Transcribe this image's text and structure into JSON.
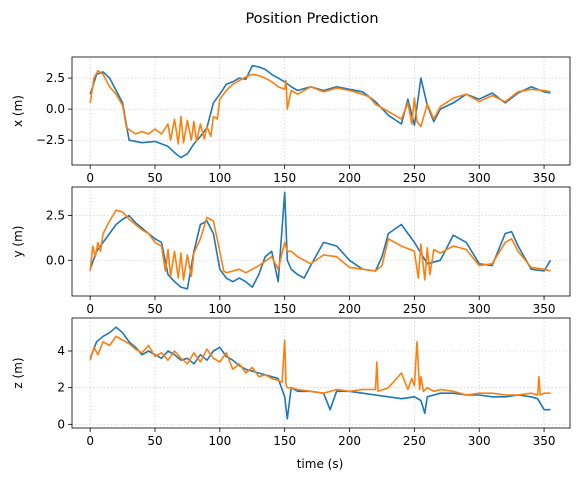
{
  "chart_data": {
    "type": "line",
    "title": "Position Prediction",
    "xlabel": "time (s)",
    "xlim": [
      -14,
      370
    ],
    "xticks": [
      0,
      50,
      100,
      150,
      200,
      250,
      300,
      350
    ],
    "grid": true,
    "series_colors": [
      "#1f77b4",
      "#ff7f0e"
    ],
    "subplots": [
      {
        "ylabel": "x (m)",
        "ylim": [
          -4.5,
          4.2
        ],
        "yticks": [
          -2.5,
          0.0,
          2.5
        ],
        "ytick_labels": [
          "−2.5",
          "0.0",
          "2.5"
        ],
        "series": [
          {
            "x": [
              0,
              5,
              10,
              15,
              20,
              25,
              30,
              40,
              50,
              60,
              65,
              70,
              75,
              80,
              85,
              90,
              95,
              100,
              105,
              110,
              115,
              120,
              125,
              130,
              135,
              140,
              145,
              150,
              155,
              160,
              170,
              180,
              190,
              200,
              210,
              215,
              220,
              230,
              240,
              245,
              250,
              255,
              260,
              265,
              270,
              280,
              290,
              300,
              310,
              320,
              330,
              340,
              350,
              355
            ],
            "values": [
              1.2,
              2.8,
              3.0,
              2.5,
              1.5,
              0.5,
              -2.5,
              -2.7,
              -2.6,
              -3.0,
              -3.5,
              -3.9,
              -3.6,
              -2.8,
              -2.2,
              -1.5,
              0.5,
              1.2,
              2.0,
              2.2,
              2.5,
              2.4,
              3.5,
              3.4,
              3.2,
              2.8,
              2.5,
              2.2,
              1.8,
              1.5,
              1.8,
              1.5,
              1.8,
              1.6,
              1.4,
              1.0,
              0.6,
              -0.5,
              -1.2,
              0.8,
              -1.3,
              2.5,
              0.3,
              -1.0,
              0.0,
              0.5,
              1.2,
              0.8,
              1.3,
              0.5,
              1.3,
              1.8,
              1.4,
              1.3
            ]
          },
          {
            "x": [
              0,
              3,
              6,
              10,
              15,
              20,
              25,
              28,
              35,
              40,
              45,
              50,
              55,
              60,
              62,
              65,
              68,
              70,
              72,
              75,
              78,
              80,
              82,
              85,
              88,
              90,
              93,
              95,
              98,
              100,
              105,
              110,
              115,
              120,
              125,
              130,
              135,
              140,
              145,
              150,
              151,
              152,
              155,
              160,
              170,
              180,
              190,
              200,
              210,
              215,
              220,
              230,
              240,
              245,
              248,
              250,
              252,
              255,
              260,
              265,
              270,
              280,
              290,
              300,
              310,
              320,
              330,
              340,
              350,
              355
            ],
            "values": [
              0.5,
              2.5,
              3.1,
              2.8,
              1.8,
              1.2,
              0.3,
              -1.5,
              -2.0,
              -1.8,
              -2.0,
              -1.6,
              -2.0,
              -1.2,
              -2.5,
              -0.8,
              -2.8,
              -0.6,
              -2.7,
              -0.9,
              -2.5,
              -1.0,
              -2.6,
              -1.2,
              -2.4,
              -1.4,
              -2.2,
              -0.6,
              -0.8,
              0.8,
              1.5,
              2.0,
              2.3,
              2.6,
              2.8,
              2.7,
              2.5,
              2.2,
              1.8,
              1.6,
              2.3,
              0.0,
              1.5,
              1.2,
              1.8,
              1.4,
              1.7,
              1.5,
              1.2,
              1.0,
              0.4,
              -0.2,
              -0.8,
              0.5,
              -1.2,
              0.9,
              -1.0,
              -1.4,
              0.4,
              -0.8,
              0.2,
              0.9,
              1.2,
              0.6,
              1.1,
              0.6,
              1.4,
              1.6,
              1.5,
              1.4
            ]
          }
        ]
      },
      {
        "ylabel": "y (m)",
        "ylim": [
          -2.0,
          4.1
        ],
        "yticks": [
          0.0,
          2.5
        ],
        "ytick_labels": [
          "0.0",
          "2.5"
        ],
        "series": [
          {
            "x": [
              0,
              5,
              10,
              15,
              20,
              25,
              30,
              35,
              40,
              45,
              50,
              55,
              60,
              65,
              70,
              75,
              80,
              85,
              90,
              95,
              100,
              105,
              110,
              115,
              120,
              125,
              130,
              135,
              140,
              145,
              150,
              152,
              155,
              160,
              165,
              170,
              180,
              190,
              200,
              210,
              220,
              225,
              230,
              240,
              250,
              260,
              270,
              280,
              290,
              300,
              310,
              320,
              325,
              330,
              340,
              350,
              355
            ],
            "values": [
              -0.5,
              0.5,
              1.0,
              1.5,
              2.0,
              2.3,
              2.5,
              2.1,
              1.8,
              1.5,
              1.2,
              1.0,
              -0.8,
              -1.2,
              -1.5,
              -1.6,
              0.5,
              2.0,
              2.2,
              1.5,
              -0.5,
              -1.0,
              -1.2,
              -1.0,
              -1.2,
              -1.5,
              -0.8,
              0.2,
              0.5,
              -1.2,
              3.8,
              0.0,
              -0.5,
              -0.8,
              -1.0,
              -0.3,
              1.0,
              0.8,
              0.0,
              -0.5,
              -0.6,
              0.2,
              1.5,
              2.0,
              1.0,
              -0.2,
              0.0,
              1.4,
              1.0,
              -0.2,
              -0.3,
              1.5,
              1.6,
              0.8,
              -0.5,
              -0.6,
              0.0
            ]
          },
          {
            "x": [
              0,
              2,
              4,
              6,
              8,
              10,
              15,
              20,
              25,
              30,
              35,
              40,
              45,
              50,
              55,
              58,
              60,
              62,
              65,
              68,
              70,
              72,
              75,
              78,
              80,
              85,
              90,
              95,
              100,
              103,
              105,
              110,
              115,
              120,
              125,
              130,
              140,
              145,
              150,
              152,
              155,
              160,
              170,
              180,
              190,
              200,
              210,
              220,
              225,
              230,
              240,
              250,
              253,
              255,
              258,
              260,
              262,
              265,
              270,
              280,
              290,
              300,
              310,
              320,
              325,
              330,
              340,
              350,
              355
            ],
            "values": [
              -0.6,
              0.8,
              0.2,
              1.0,
              0.5,
              1.5,
              2.2,
              2.8,
              2.7,
              2.3,
              2.0,
              1.7,
              1.5,
              1.0,
              0.8,
              -0.6,
              0.6,
              -0.9,
              0.5,
              -1.0,
              0.4,
              -1.1,
              0.3,
              -0.9,
              0.4,
              1.2,
              2.4,
              2.2,
              0.5,
              -0.6,
              -0.7,
              -0.6,
              -0.5,
              -0.7,
              -0.5,
              -0.3,
              0.2,
              -0.5,
              1.0,
              0.5,
              0.5,
              0.2,
              -0.2,
              0.3,
              0.2,
              -0.4,
              -0.5,
              -0.6,
              -0.3,
              1.2,
              0.8,
              0.5,
              -1.0,
              0.9,
              -1.1,
              0.7,
              -0.8,
              0.6,
              0.4,
              0.8,
              0.6,
              -0.3,
              -0.2,
              1.0,
              1.2,
              0.5,
              -0.4,
              -0.5,
              -0.6
            ]
          }
        ]
      },
      {
        "ylabel": "z (m)",
        "ylim": [
          -0.2,
          5.8
        ],
        "yticks": [
          0,
          2,
          4
        ],
        "ytick_labels": [
          "0",
          "2",
          "4"
        ],
        "series": [
          {
            "x": [
              0,
              5,
              10,
              15,
              20,
              25,
              30,
              35,
              40,
              45,
              50,
              55,
              60,
              65,
              70,
              75,
              80,
              85,
              90,
              95,
              100,
              105,
              110,
              115,
              120,
              125,
              130,
              135,
              140,
              145,
              150,
              152,
              155,
              160,
              170,
              180,
              185,
              190,
              200,
              210,
              220,
              230,
              240,
              250,
              255,
              258,
              260,
              265,
              270,
              280,
              290,
              300,
              310,
              320,
              330,
              340,
              345,
              350,
              355
            ],
            "values": [
              3.6,
              4.5,
              4.8,
              5.0,
              5.3,
              5.0,
              4.5,
              4.2,
              3.8,
              4.0,
              3.8,
              3.6,
              4.0,
              3.8,
              3.5,
              3.6,
              3.3,
              3.8,
              3.5,
              4.0,
              4.2,
              3.7,
              3.5,
              3.2,
              3.0,
              2.9,
              2.8,
              2.7,
              2.6,
              2.5,
              1.5,
              0.3,
              2.0,
              1.8,
              1.8,
              1.7,
              0.8,
              1.8,
              1.8,
              1.7,
              1.6,
              1.5,
              1.4,
              1.5,
              1.3,
              0.6,
              1.5,
              1.6,
              1.7,
              1.7,
              1.6,
              1.6,
              1.5,
              1.5,
              1.6,
              1.5,
              1.4,
              0.8,
              0.8
            ]
          },
          {
            "x": [
              0,
              3,
              6,
              10,
              15,
              20,
              25,
              30,
              35,
              40,
              45,
              50,
              55,
              60,
              65,
              70,
              75,
              80,
              85,
              90,
              95,
              100,
              105,
              110,
              115,
              120,
              125,
              130,
              135,
              140,
              145,
              148,
              150,
              151,
              152,
              155,
              160,
              170,
              180,
              190,
              200,
              210,
              220,
              221,
              222,
              230,
              240,
              245,
              248,
              250,
              252,
              254,
              255,
              257,
              260,
              265,
              270,
              280,
              290,
              300,
              310,
              320,
              330,
              340,
              345,
              346,
              347,
              350,
              355
            ],
            "values": [
              3.5,
              4.2,
              3.8,
              4.5,
              4.3,
              4.8,
              4.6,
              4.4,
              4.1,
              3.9,
              4.3,
              3.7,
              3.9,
              3.5,
              4.0,
              3.6,
              3.3,
              3.9,
              3.4,
              4.1,
              3.6,
              3.4,
              3.9,
              3.0,
              3.3,
              2.8,
              3.1,
              2.6,
              2.7,
              2.5,
              2.4,
              2.3,
              4.6,
              2.2,
              2.0,
              2.0,
              1.9,
              1.8,
              1.7,
              1.9,
              1.8,
              1.9,
              1.9,
              3.4,
              1.8,
              2.0,
              2.8,
              1.9,
              2.5,
              2.1,
              4.5,
              1.9,
              2.6,
              1.8,
              2.0,
              1.8,
              1.9,
              1.8,
              1.6,
              1.7,
              1.7,
              1.6,
              1.6,
              1.7,
              1.6,
              2.6,
              1.6,
              1.7,
              1.7
            ]
          }
        ]
      }
    ]
  }
}
